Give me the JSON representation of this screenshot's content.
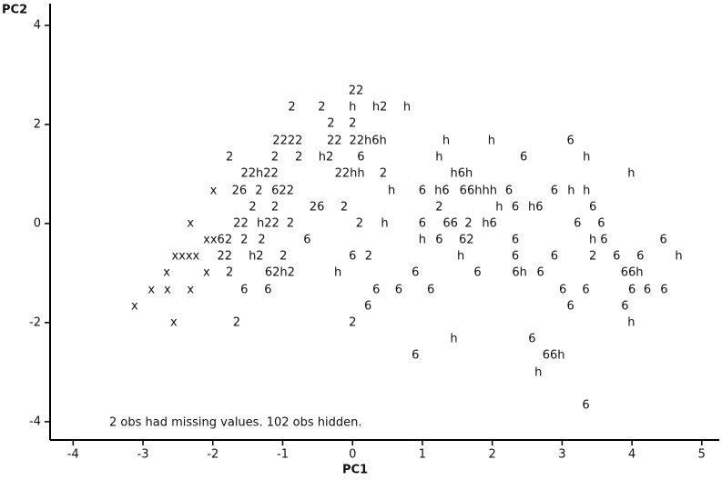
{
  "chart_data": {
    "type": "scatter",
    "x_label": "PC1",
    "y_label": "PC2",
    "annotation": "2 obs had missing values. 102 obs hidden.",
    "xlim": [
      -4.33,
      5.25
    ],
    "ylim": [
      -4.37,
      4.42
    ],
    "xticks": [
      -4,
      -3,
      -2,
      -1,
      0,
      1,
      2,
      3,
      4,
      5
    ],
    "yticks": [
      -4,
      -2,
      0,
      2,
      4
    ],
    "color": "#111111",
    "x": [
      0.05,
      -0.87,
      -0.44,
      0,
      0.39,
      0.78,
      -0.31,
      0,
      -0.93,
      -0.26,
      0.22,
      1.34,
      1.99,
      3.12,
      -1.76,
      -1.11,
      -0.77,
      -0.38,
      0.12,
      1.24,
      2.45,
      3.35,
      -1.33,
      -0.04,
      0.44,
      1.56,
      3.99,
      -1.99,
      -1.62,
      -1.34,
      -1.0,
      0.56,
      1.0,
      1.28,
      1.8,
      2.24,
      2.89,
      3.13,
      3.35,
      -1.43,
      -1.11,
      -0.51,
      -0.12,
      1.24,
      2.1,
      2.33,
      2.62,
      3.44,
      -2.32,
      -1.6,
      -1.21,
      -0.89,
      0.1,
      0.46,
      1.0,
      1.4,
      1.66,
      1.96,
      3.22,
      3.56,
      -1.93,
      -1.55,
      -1.3,
      -0.65,
      1.0,
      1.24,
      1.63,
      2.33,
      3.44,
      3.6,
      4.45,
      -2.39,
      -1.83,
      -1.38,
      -0.99,
      0,
      0.23,
      1.55,
      2.33,
      2.89,
      3.44,
      3.78,
      4.12,
      4.67,
      -2.66,
      -2.09,
      -1.76,
      -1.04,
      -0.21,
      0.9,
      1.79,
      2.39,
      2.69,
      4.0,
      -2.88,
      -2.65,
      -2.32,
      -1.55,
      -1.21,
      0.34,
      0.66,
      1.12,
      3.01,
      3.34,
      4.0,
      4.22,
      4.46,
      -3.12,
      0.22,
      3.12,
      3.9,
      -2.56,
      -1.66,
      0,
      3.99,
      1.45,
      2.57,
      0.9,
      2.88,
      2.66,
      3.34
    ],
    "y": [
      2.68,
      2.35,
      2.35,
      2.35,
      2.35,
      2.35,
      2.02,
      2.02,
      1.67,
      1.67,
      1.67,
      1.67,
      1.67,
      1.67,
      1.34,
      1.34,
      1.34,
      1.34,
      1.34,
      1.34,
      1.34,
      1.34,
      1.01,
      1.01,
      1.01,
      1.01,
      1.01,
      0.66,
      0.66,
      0.66,
      0.66,
      0.66,
      0.66,
      0.66,
      0.66,
      0.66,
      0.66,
      0.66,
      0.66,
      0.33,
      0.33,
      0.33,
      0.33,
      0.33,
      0.33,
      0.33,
      0.33,
      0.33,
      0,
      0,
      0,
      0,
      0,
      0,
      0,
      0,
      0,
      0,
      0,
      0,
      -0.33,
      -0.33,
      -0.33,
      -0.33,
      -0.33,
      -0.33,
      -0.33,
      -0.33,
      -0.33,
      -0.33,
      -0.33,
      -0.66,
      -0.66,
      -0.66,
      -0.66,
      -0.66,
      -0.66,
      -0.66,
      -0.66,
      -0.66,
      -0.66,
      -0.66,
      -0.66,
      -0.66,
      -0.99,
      -0.99,
      -0.99,
      -0.99,
      -0.99,
      -0.99,
      -0.99,
      -0.99,
      -0.99,
      -0.99,
      -1.34,
      -1.34,
      -1.34,
      -1.34,
      -1.34,
      -1.34,
      -1.34,
      -1.34,
      -1.34,
      -1.34,
      -1.34,
      -1.34,
      -1.34,
      -1.67,
      -1.67,
      -1.67,
      -1.67,
      -2.0,
      -2.0,
      -2.0,
      -2.0,
      -2.33,
      -2.33,
      -2.66,
      -2.66,
      -3.01,
      -3.67
    ],
    "labels": [
      "22",
      "2",
      "2",
      "h",
      "h2",
      "h",
      "2",
      "2",
      "2222",
      "22",
      "22h6h",
      "h",
      "h",
      "6",
      "2",
      "2",
      "2",
      "h2",
      "6",
      "h",
      "6",
      "h",
      "22h22",
      "22hh",
      "2",
      "h6h",
      "h",
      "x",
      "26",
      "2",
      "622",
      "h",
      "6",
      "h6",
      "66hhh",
      "6",
      "6",
      "h",
      "h",
      "2",
      "2",
      "26",
      "2",
      "2",
      "h",
      "6",
      "h6",
      "6",
      "x",
      "22",
      "h22",
      "2",
      "2",
      "h",
      "6",
      "66",
      "2",
      "h6",
      "6",
      "6",
      "xx62",
      "2",
      "2",
      "6",
      "h",
      "6",
      "62",
      "6",
      "h",
      "6",
      "6",
      "xxxx",
      "22",
      "h2",
      "2",
      "6",
      "2",
      "h",
      "6",
      "6",
      "2",
      "6",
      "6",
      "h",
      "x",
      "x",
      "2",
      "62h2",
      "h",
      "6",
      "6",
      "6h",
      "6",
      "66h",
      "x",
      "x",
      "x",
      "6",
      "6",
      "6",
      "6",
      "6",
      "6",
      "6",
      "6",
      "6",
      "6",
      "x",
      "6",
      "6",
      "6",
      "x",
      "2",
      "2",
      "h",
      "h",
      "6",
      "6",
      "66h",
      "h",
      "6"
    ]
  }
}
